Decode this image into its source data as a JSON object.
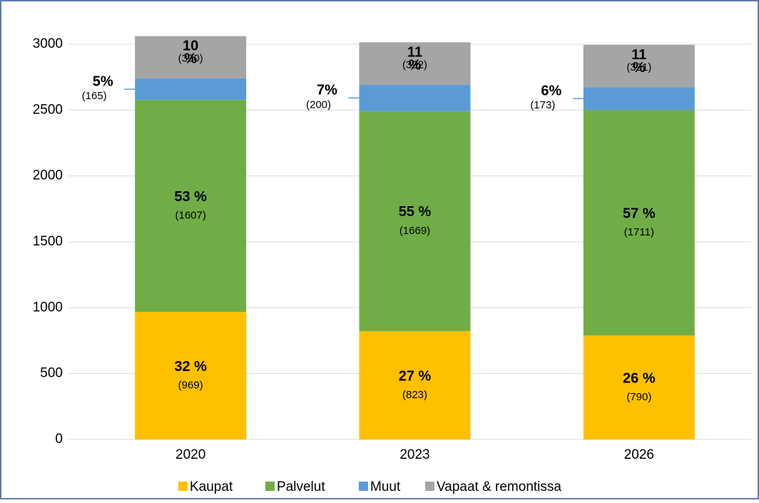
{
  "chart_data": {
    "type": "stacked_bar",
    "categories": [
      "2020",
      "2023",
      "2026"
    ],
    "series": [
      {
        "name": "Kaupat",
        "color": "#ffc000",
        "values": [
          969,
          823,
          790
        ],
        "value_labels": [
          "(969)",
          "(823)",
          "(790)"
        ],
        "percentages": [
          32,
          27,
          26
        ],
        "percentage_labels": [
          "32 %",
          "27 %",
          "26 %"
        ]
      },
      {
        "name": "Palvelut",
        "color": "#70ad47",
        "values": [
          1607,
          1669,
          1711
        ],
        "value_labels": [
          "(1607)",
          "(1669)",
          "(1711)"
        ],
        "percentages": [
          53,
          55,
          57
        ],
        "percentage_labels": [
          "53 %",
          "55 %",
          "57 %"
        ]
      },
      {
        "name": "Muut",
        "color": "#5b9bd5",
        "values": [
          165,
          200,
          173
        ],
        "value_labels": [
          "(165)",
          "(200)",
          "(173)"
        ],
        "percentages": [
          5,
          7,
          6
        ],
        "percentage_labels": [
          "5%",
          "7%",
          "6%"
        ]
      },
      {
        "name": "Vapaat & remontissa",
        "color": "#a5a5a5",
        "values": [
          320,
          322,
          321
        ],
        "value_labels": [
          "(320)",
          "(322)",
          "(321)"
        ],
        "percentages": [
          10,
          11,
          11
        ],
        "percentage_labels": [
          "10 %",
          "11 %",
          "11 %"
        ]
      }
    ],
    "ylim": [
      0,
      3200
    ],
    "yticks": [
      0,
      500,
      1000,
      1500,
      2000,
      2500,
      3000
    ],
    "grid": true,
    "legend": "bottom"
  }
}
